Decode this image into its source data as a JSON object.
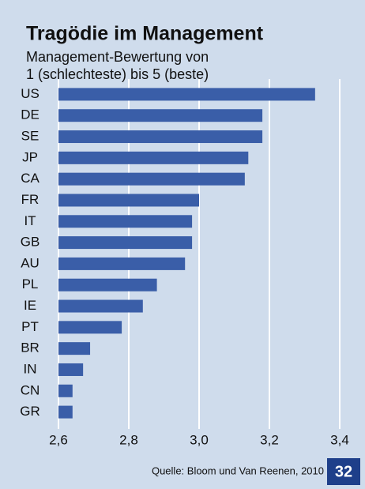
{
  "chart_data": {
    "type": "barh",
    "title": "Tragödie im Management",
    "subtitle": [
      "Management-Bewertung von",
      "1 (schlechteste) bis 5 (beste)"
    ],
    "categories": [
      "US",
      "DE",
      "SE",
      "JP",
      "CA",
      "FR",
      "IT",
      "GB",
      "AU",
      "PL",
      "IE",
      "PT",
      "BR",
      "IN",
      "CN",
      "GR"
    ],
    "values": [
      3.33,
      3.18,
      3.18,
      3.14,
      3.13,
      3.0,
      2.98,
      2.98,
      2.96,
      2.88,
      2.84,
      2.78,
      2.69,
      2.67,
      2.64,
      2.64
    ],
    "color": "#3a5ea8",
    "xlim": [
      2.6,
      3.4
    ],
    "xticks": [
      {
        "value": 2.6,
        "label": "2,6"
      },
      {
        "value": 2.8,
        "label": "2,8"
      },
      {
        "value": 3.0,
        "label": "3,0"
      },
      {
        "value": 3.2,
        "label": "3,2"
      },
      {
        "value": 3.4,
        "label": "3,4"
      }
    ],
    "grid": true,
    "source": "Quelle: Bloom und Van Reenen, 2010",
    "page_number": "32"
  }
}
